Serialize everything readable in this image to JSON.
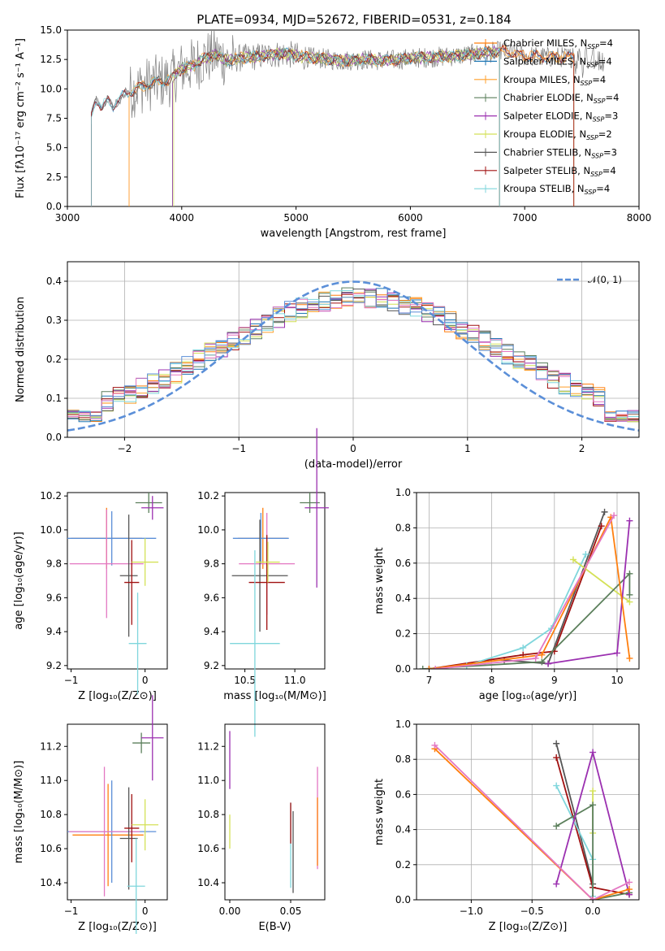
{
  "chart_data": [
    {
      "id": "spectrum",
      "type": "line",
      "title": "PLATE=0934, MJD=52672, FIBERID=0531, z=0.184",
      "xlabel": "wavelength [Angstrom, rest frame]",
      "ylabel": "Flux [fλ10⁻¹⁷ erg cm⁻² s⁻¹ A⁻¹]",
      "xlim": [
        3000,
        8000
      ],
      "ylim": [
        0,
        15
      ],
      "xticks": [
        3000,
        4000,
        5000,
        6000,
        7000,
        8000
      ],
      "yticks": [
        0.0,
        2.5,
        5.0,
        7.5,
        10.0,
        12.5,
        15.0
      ],
      "grid": false,
      "legend_position": "right",
      "data": {
        "x": [
          3200,
          3250,
          3300,
          3350,
          3400,
          3500,
          3600,
          3700,
          3800,
          3900,
          4000,
          4100,
          4200,
          4300,
          4400,
          4500,
          4700,
          4900,
          5000,
          5200,
          5400,
          5600,
          5800,
          6000,
          6200,
          6400,
          6600,
          6800,
          7000,
          7200,
          7400,
          7600,
          7800,
          8000
        ],
        "y": [
          7.3,
          9.2,
          8.4,
          9.0,
          8.6,
          9.5,
          10.0,
          10.4,
          10.6,
          10.8,
          11.7,
          12.0,
          12.6,
          12.9,
          12.4,
          12.6,
          12.8,
          13.0,
          12.8,
          12.6,
          12.4,
          12.5,
          12.4,
          12.6,
          12.7,
          12.8,
          13.0,
          13.2,
          12.8,
          12.7,
          12.7,
          12.5,
          12.2,
          11.9
        ]
      },
      "series": [
        {
          "label": "Chabrier MILES, N",
          "sub": "SSP",
          "suffix": "=4",
          "color": "#ff7f0e"
        },
        {
          "label": "Salpeter MILES, N",
          "sub": "SSP",
          "suffix": "=4",
          "color": "#1f77b4"
        },
        {
          "label": "Kroupa MILES, N",
          "sub": "SSP",
          "suffix": "=4",
          "color": "#ff9f2a"
        },
        {
          "label": "Chabrier ELODIE, N",
          "sub": "SSP",
          "suffix": "=4",
          "color": "#5b7f5b"
        },
        {
          "label": "Salpeter ELODIE, N",
          "sub": "SSP",
          "suffix": "=3",
          "color": "#9b30b0"
        },
        {
          "label": "Kroupa ELODIE, N",
          "sub": "SSP",
          "suffix": "=2",
          "color": "#d4e157"
        },
        {
          "label": "Chabrier STELIB, N",
          "sub": "SSP",
          "suffix": "=3",
          "color": "#555555"
        },
        {
          "label": "Salpeter STELIB, N",
          "sub": "SSP",
          "suffix": "=4",
          "color": "#a01010"
        },
        {
          "label": "Kroupa STELIB, N",
          "sub": "SSP",
          "suffix": "=4",
          "color": "#7fd6dc"
        }
      ]
    },
    {
      "id": "residuals",
      "type": "line",
      "xlabel": "(data-model)/error",
      "ylabel": "Normed distribution",
      "xlim": [
        -2.5,
        2.5
      ],
      "ylim": [
        0,
        0.45
      ],
      "xticks": [
        -2,
        -1,
        0,
        1,
        2
      ],
      "yticks": [
        0.0,
        0.1,
        0.2,
        0.3,
        0.4
      ],
      "grid": true,
      "legend_position": "top-right",
      "legend": "𝒩(0, 1)",
      "gauss_color": "#5b8fd8"
    },
    {
      "id": "age_vs_Z",
      "type": "scatter",
      "xlabel": "Z [log₁₀(Z/Z⊙)]",
      "ylabel": "age  [log₁₀(age/yr)]",
      "xlim": [
        -1.05,
        0.3
      ],
      "ylim": [
        9.18,
        10.22
      ],
      "xticks": [
        -1,
        0
      ],
      "yticks": [
        9.2,
        9.4,
        9.6,
        9.8,
        10.0,
        10.2
      ],
      "grid": false,
      "points": [
        {
          "x": -0.52,
          "y": 9.95,
          "xerr": 0.48,
          "yerr": 0.18,
          "color": "#ff7f0e"
        },
        {
          "x": -0.45,
          "y": 9.95,
          "xerr": 0.6,
          "yerr": 0.16,
          "color": "#5b8fd8"
        },
        {
          "x": -0.52,
          "y": 9.8,
          "xerr": 0.5,
          "yerr": 0.32,
          "color": "#e377c2"
        },
        {
          "x": -0.22,
          "y": 9.73,
          "xerr": 0.12,
          "yerr": 0.36,
          "color": "#555555"
        },
        {
          "x": -0.18,
          "y": 9.69,
          "xerr": 0.1,
          "yerr": 0.25,
          "color": "#a01010"
        },
        {
          "x": 0.0,
          "y": 9.81,
          "xerr": 0.18,
          "yerr": 0.14,
          "color": "#d4e157"
        },
        {
          "x": -0.1,
          "y": 9.33,
          "xerr": 0.12,
          "yerr": 0.3,
          "color": "#7fd6dc"
        },
        {
          "x": 0.05,
          "y": 10.16,
          "xerr": 0.18,
          "yerr": 0.06,
          "color": "#5b7f5b"
        },
        {
          "x": 0.1,
          "y": 10.13,
          "xerr": 0.15,
          "yerr": 0.07,
          "color": "#9b30b0"
        }
      ]
    },
    {
      "id": "age_vs_mass",
      "type": "scatter",
      "xlabel": "mass [log₁₀(M/M⊙)]",
      "xlim": [
        10.3,
        11.3
      ],
      "ylim": [
        9.18,
        10.22
      ],
      "xticks": [
        10.5,
        11.0
      ],
      "yticks": [
        9.2,
        9.4,
        9.6,
        9.8,
        10.0,
        10.2
      ],
      "grid": false,
      "points": [
        {
          "x": 10.68,
          "y": 9.95,
          "xerr": 0.25,
          "yerr": 0.18,
          "color": "#ff7f0e"
        },
        {
          "x": 10.66,
          "y": 9.95,
          "xerr": 0.28,
          "yerr": 0.15,
          "color": "#5b8fd8"
        },
        {
          "x": 10.72,
          "y": 9.8,
          "xerr": 0.28,
          "yerr": 0.3,
          "color": "#e377c2"
        },
        {
          "x": 10.65,
          "y": 9.73,
          "xerr": 0.28,
          "yerr": 0.33,
          "color": "#555555"
        },
        {
          "x": 10.72,
          "y": 9.69,
          "xerr": 0.18,
          "yerr": 0.28,
          "color": "#a01010"
        },
        {
          "x": 10.73,
          "y": 9.81,
          "xerr": 0.12,
          "yerr": 0.12,
          "color": "#d4e157"
        },
        {
          "x": 10.6,
          "y": 9.33,
          "xerr": 0.25,
          "yerr": 0.55,
          "color": "#7fd6dc"
        },
        {
          "x": 11.15,
          "y": 10.16,
          "xerr": 0.1,
          "yerr": 0.06,
          "color": "#5b7f5b"
        },
        {
          "x": 11.22,
          "y": 10.13,
          "xerr": 0.12,
          "yerr": 0.47,
          "color": "#9b30b0"
        }
      ]
    },
    {
      "id": "weight_vs_age",
      "type": "line",
      "xlabel": "age  [log₁₀(age/yr)]",
      "ylabel": "mass weight",
      "xlim": [
        6.8,
        10.35
      ],
      "ylim": [
        0,
        1
      ],
      "xticks": [
        7,
        8,
        9,
        10
      ],
      "yticks": [
        0.0,
        0.2,
        0.4,
        0.6,
        0.8,
        1.0
      ],
      "grid": true,
      "series": [
        {
          "color": "#555555",
          "x": [
            8.2,
            8.9,
            9.8
          ],
          "y": [
            0.05,
            0.03,
            0.89
          ]
        },
        {
          "color": "#a01010",
          "x": [
            7.0,
            8.5,
            9.0,
            9.75
          ],
          "y": [
            0.0,
            0.08,
            0.1,
            0.81
          ]
        },
        {
          "color": "#7fd6dc",
          "x": [
            7.6,
            8.5,
            8.95,
            9.5
          ],
          "y": [
            0.02,
            0.12,
            0.23,
            0.65
          ]
        },
        {
          "color": "#d4e157",
          "x": [
            9.3,
            10.2
          ],
          "y": [
            0.62,
            0.38
          ]
        },
        {
          "color": "#5b7f5b",
          "x": [
            6.9,
            8.8,
            10.2,
            10.2
          ],
          "y": [
            0.0,
            0.04,
            0.54,
            0.42
          ]
        },
        {
          "color": "#9b30b0",
          "x": [
            8.9,
            10.0,
            10.2
          ],
          "y": [
            0.03,
            0.09,
            0.84
          ]
        },
        {
          "color": "#ff7f0e",
          "x": [
            7.0,
            8.8,
            9.9,
            10.2
          ],
          "y": [
            0.0,
            0.08,
            0.86,
            0.06
          ]
        },
        {
          "color": "#e377c2",
          "x": [
            7.1,
            8.7,
            9.95
          ],
          "y": [
            0.0,
            0.06,
            0.87
          ]
        }
      ]
    },
    {
      "id": "mass_vs_Z",
      "type": "scatter",
      "xlabel": "Z [log₁₀(Z/Z⊙)]",
      "ylabel": "mass [log₁₀(M/M⊙)]",
      "xlim": [
        -1.05,
        0.3
      ],
      "ylim": [
        10.3,
        11.33
      ],
      "xticks": [
        -1,
        0
      ],
      "yticks": [
        10.4,
        10.6,
        10.8,
        11.0,
        11.2
      ],
      "grid": false,
      "points": [
        {
          "x": -0.5,
          "y": 10.68,
          "xerr": 0.48,
          "yerr": 0.3,
          "color": "#ff7f0e"
        },
        {
          "x": -0.45,
          "y": 10.7,
          "xerr": 0.6,
          "yerr": 0.3,
          "color": "#5b8fd8"
        },
        {
          "x": -0.55,
          "y": 10.7,
          "xerr": 0.48,
          "yerr": 0.38,
          "color": "#e377c2"
        },
        {
          "x": -0.22,
          "y": 10.66,
          "xerr": 0.12,
          "yerr": 0.3,
          "color": "#555555"
        },
        {
          "x": -0.18,
          "y": 10.72,
          "xerr": 0.1,
          "yerr": 0.2,
          "color": "#a01010"
        },
        {
          "x": 0.0,
          "y": 10.74,
          "xerr": 0.18,
          "yerr": 0.15,
          "color": "#d4e157"
        },
        {
          "x": -0.12,
          "y": 10.38,
          "xerr": 0.12,
          "yerr": 0.28,
          "color": "#7fd6dc"
        },
        {
          "x": -0.05,
          "y": 11.22,
          "xerr": 0.12,
          "yerr": 0.06,
          "color": "#5b7f5b"
        },
        {
          "x": 0.1,
          "y": 11.25,
          "xerr": 0.15,
          "yerr": 0.25,
          "color": "#9b30b0"
        }
      ]
    },
    {
      "id": "mass_vs_ebv",
      "type": "scatter",
      "xlabel": "E(B-V)",
      "xlim": [
        -0.004,
        0.078
      ],
      "ylim": [
        10.3,
        11.33
      ],
      "xticks": [
        0.0,
        0.05
      ],
      "yticks": [
        10.4,
        10.6,
        10.8,
        11.0,
        11.2
      ],
      "grid": false,
      "points": [
        {
          "x": 0.0,
          "y": 11.12,
          "xerr": 0,
          "yerr": 0.17,
          "color": "#9b30b0"
        },
        {
          "x": 0.0,
          "y": 10.7,
          "xerr": 0,
          "yerr": 0.1,
          "color": "#d4e157"
        },
        {
          "x": 0.05,
          "y": 10.62,
          "xerr": 0,
          "yerr": 0.25,
          "color": "#7fd6dc"
        },
        {
          "x": 0.05,
          "y": 10.75,
          "xerr": 0,
          "yerr": 0.12,
          "color": "#a01010"
        },
        {
          "x": 0.052,
          "y": 10.58,
          "xerr": 0,
          "yerr": 0.24,
          "color": "#555555"
        },
        {
          "x": 0.072,
          "y": 10.78,
          "xerr": 0,
          "yerr": 0.3,
          "color": "#e377c2"
        },
        {
          "x": 0.072,
          "y": 10.7,
          "xerr": 0,
          "yerr": 0.2,
          "color": "#ff7f0e"
        }
      ]
    },
    {
      "id": "weight_vs_Z",
      "type": "line",
      "xlabel": "Z [log₁₀(Z/Z⊙)]",
      "ylabel": "mass weight",
      "xlim": [
        -1.45,
        0.38
      ],
      "ylim": [
        0,
        1
      ],
      "xticks": [
        -1.0,
        -0.5,
        0.0
      ],
      "yticks": [
        0.0,
        0.2,
        0.4,
        0.6,
        0.8,
        1.0
      ],
      "grid": true,
      "series": [
        {
          "color": "#555555",
          "x": [
            -0.3,
            0.0,
            0.0
          ],
          "y": [
            0.89,
            0.09,
            0.0
          ]
        },
        {
          "color": "#a01010",
          "x": [
            -0.3,
            0.0,
            0.3
          ],
          "y": [
            0.81,
            0.07,
            0.03
          ]
        },
        {
          "color": "#7fd6dc",
          "x": [
            -0.3,
            0.0,
            0.0
          ],
          "y": [
            0.65,
            0.23,
            0.02
          ]
        },
        {
          "color": "#d4e157",
          "x": [
            0.0,
            0.0
          ],
          "y": [
            0.62,
            0.38
          ]
        },
        {
          "color": "#5b7f5b",
          "x": [
            -0.3,
            0.0,
            0.0,
            0.3
          ],
          "y": [
            0.42,
            0.54,
            0.0,
            0.04
          ]
        },
        {
          "color": "#9b30b0",
          "x": [
            -0.3,
            0.0,
            0.3
          ],
          "y": [
            0.09,
            0.84,
            0.03
          ]
        },
        {
          "color": "#ff7f0e",
          "x": [
            -1.3,
            0.0,
            0.3
          ],
          "y": [
            0.86,
            0.0,
            0.06
          ]
        },
        {
          "color": "#e377c2",
          "x": [
            -1.3,
            0.0,
            0.3
          ],
          "y": [
            0.88,
            0.0,
            0.1
          ]
        }
      ]
    }
  ]
}
